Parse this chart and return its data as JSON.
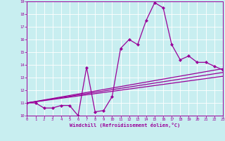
{
  "xlabel": "Windchill (Refroidissement éolien,°C)",
  "bg_color": "#c8eef0",
  "line_color": "#990099",
  "xmin": 0,
  "xmax": 23,
  "ymin": 10,
  "ymax": 19,
  "main_x": [
    0,
    1,
    2,
    3,
    4,
    5,
    6,
    7,
    8,
    9,
    10,
    11,
    12,
    13,
    14,
    15,
    16,
    17,
    18,
    19,
    20,
    21,
    22,
    23
  ],
  "main_y": [
    11.0,
    11.0,
    10.6,
    10.6,
    10.8,
    10.8,
    10.0,
    13.8,
    10.3,
    10.4,
    11.5,
    15.3,
    16.0,
    15.6,
    17.5,
    18.9,
    18.5,
    15.6,
    14.4,
    14.7,
    14.2,
    14.2,
    13.9,
    13.6
  ],
  "trend1_x": [
    0,
    23
  ],
  "trend1_y": [
    11.0,
    13.7
  ],
  "trend2_x": [
    0,
    23
  ],
  "trend2_y": [
    11.0,
    13.4
  ],
  "trend3_x": [
    0,
    23
  ],
  "trend3_y": [
    11.0,
    13.1
  ]
}
